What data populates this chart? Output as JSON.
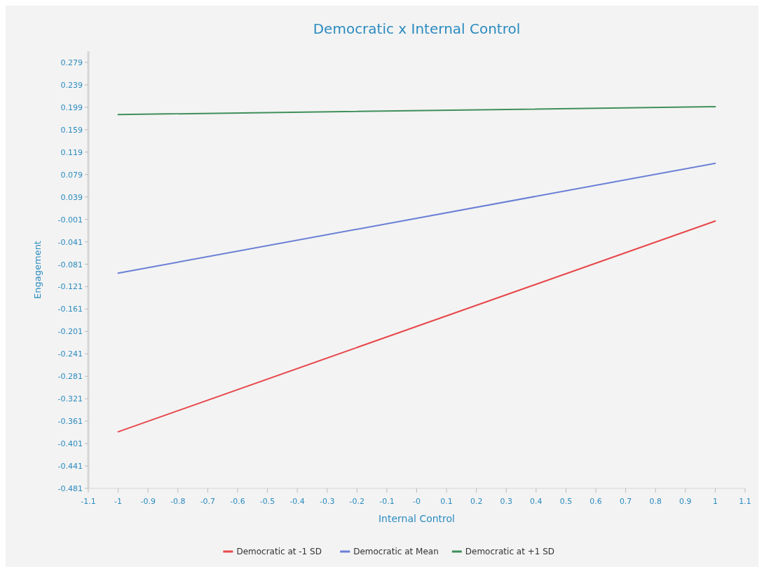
{
  "chart_data": {
    "type": "line",
    "title": "Democratic x Internal Control",
    "xlabel": "Internal Control",
    "ylabel": "Engagement",
    "x": [
      -1,
      1
    ],
    "series": [
      {
        "name": "Democratic at -1 SD",
        "color": "#e8474a",
        "values": [
          -0.38,
          -0.004
        ]
      },
      {
        "name": "Democratic at Mean",
        "color": "#6a7fd6",
        "values": [
          -0.097,
          0.099
        ]
      },
      {
        "name": "Democratic at +1 SD",
        "color": "#3f8f5a",
        "values": [
          0.186,
          0.2
        ]
      }
    ],
    "xlim": [
      -1.1,
      1.1
    ],
    "xticks": [
      -1.1,
      -1,
      -0.9,
      -0.8,
      -0.7,
      -0.6,
      -0.5,
      -0.4,
      -0.3,
      -0.2,
      -0.1,
      {
        "value": 0,
        "label": "-0"
      },
      0.1,
      0.2,
      0.3,
      0.4,
      0.5,
      0.6,
      0.7,
      0.8,
      0.9,
      1,
      1.1
    ],
    "ylim": [
      -0.481,
      0.299
    ],
    "yticks": [
      -0.481,
      -0.441,
      -0.401,
      -0.361,
      -0.321,
      -0.281,
      -0.241,
      -0.201,
      -0.161,
      -0.121,
      -0.081,
      -0.041,
      -0.001,
      0.039,
      0.079,
      0.119,
      0.159,
      0.199,
      0.239,
      0.279
    ],
    "legend": "bottom",
    "grid": false,
    "marker": "none",
    "line_style": "solid"
  }
}
